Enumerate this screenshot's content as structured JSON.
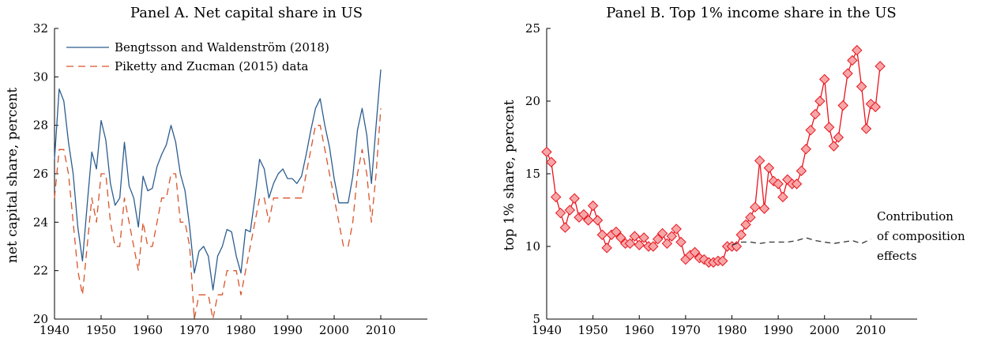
{
  "chart_data": [
    {
      "type": "line",
      "title": "Panel A. Net capital share in US",
      "xlabel": "",
      "ylabel": "net capital share, percent",
      "xlim": [
        1940,
        2020
      ],
      "ylim": [
        20,
        32
      ],
      "xticks": [
        1940,
        1950,
        1960,
        1970,
        1980,
        1990,
        2000,
        2010
      ],
      "yticks": [
        20,
        22,
        24,
        26,
        28,
        30,
        32
      ],
      "grid": false,
      "legend_position": "top-left",
      "series": [
        {
          "name": "Bengtsson and Waldenström (2018)",
          "color": "#2b5d8f",
          "style": "solid",
          "x": [
            1940,
            1941,
            1942,
            1943,
            1944,
            1945,
            1946,
            1947,
            1948,
            1949,
            1950,
            1951,
            1952,
            1953,
            1954,
            1955,
            1956,
            1957,
            1958,
            1959,
            1960,
            1961,
            1962,
            1963,
            1964,
            1965,
            1966,
            1967,
            1968,
            1969,
            1970,
            1971,
            1972,
            1973,
            1974,
            1975,
            1976,
            1977,
            1978,
            1979,
            1980,
            1981,
            1982,
            1983,
            1984,
            1985,
            1986,
            1987,
            1988,
            1989,
            1990,
            1991,
            1992,
            1993,
            1994,
            1995,
            1996,
            1997,
            1998,
            1999,
            2000,
            2001,
            2002,
            2003,
            2004,
            2005,
            2006,
            2007,
            2008,
            2009,
            2010
          ],
          "y": [
            26.6,
            29.5,
            29.0,
            27.3,
            26.0,
            23.8,
            22.4,
            24.7,
            26.9,
            26.2,
            28.2,
            27.4,
            25.6,
            24.7,
            25.0,
            27.3,
            25.5,
            25.0,
            23.8,
            25.9,
            25.3,
            25.4,
            26.3,
            26.8,
            27.2,
            28.0,
            27.3,
            26.0,
            25.3,
            23.8,
            21.9,
            22.8,
            23.0,
            22.6,
            21.2,
            22.6,
            23.0,
            23.7,
            23.6,
            22.6,
            21.9,
            23.7,
            23.6,
            25.0,
            26.6,
            26.2,
            25.0,
            25.6,
            26.0,
            26.2,
            25.8,
            25.8,
            25.6,
            25.9,
            26.8,
            27.8,
            28.7,
            29.1,
            28.0,
            27.1,
            25.8,
            24.8,
            24.8,
            24.8,
            25.9,
            27.8,
            28.7,
            27.6,
            25.6,
            28.0,
            30.3
          ]
        },
        {
          "name": "Piketty and Zucman (2015) data",
          "color": "#d9542a",
          "style": "dashed",
          "x": [
            1940,
            1941,
            1942,
            1943,
            1944,
            1945,
            1946,
            1947,
            1948,
            1949,
            1950,
            1951,
            1952,
            1953,
            1954,
            1955,
            1956,
            1957,
            1958,
            1959,
            1960,
            1961,
            1962,
            1963,
            1964,
            1965,
            1966,
            1967,
            1968,
            1969,
            1970,
            1971,
            1972,
            1973,
            1974,
            1975,
            1976,
            1977,
            1978,
            1979,
            1980,
            1981,
            1982,
            1983,
            1984,
            1985,
            1986,
            1987,
            1988,
            1989,
            1990,
            1991,
            1992,
            1993,
            1994,
            1995,
            1996,
            1997,
            1998,
            1999,
            2000,
            2001,
            2002,
            2003,
            2004,
            2005,
            2006,
            2007,
            2008,
            2009,
            2010
          ],
          "y": [
            25.0,
            27.0,
            27.0,
            26.0,
            24.0,
            22.0,
            21.0,
            23.0,
            25.0,
            24.0,
            26.0,
            26.0,
            24.0,
            23.0,
            23.0,
            25.0,
            24.0,
            23.0,
            22.0,
            24.0,
            23.0,
            23.0,
            24.0,
            25.0,
            25.0,
            26.0,
            26.0,
            24.0,
            24.0,
            23.0,
            20.0,
            21.0,
            21.0,
            21.0,
            20.0,
            21.0,
            21.0,
            22.0,
            22.0,
            22.0,
            21.0,
            22.0,
            23.0,
            24.0,
            25.0,
            25.0,
            24.0,
            25.0,
            25.0,
            25.0,
            25.0,
            25.0,
            25.0,
            25.0,
            26.0,
            27.0,
            28.0,
            28.0,
            27.0,
            26.0,
            25.0,
            24.0,
            23.0,
            23.0,
            24.0,
            26.0,
            27.0,
            26.0,
            24.0,
            26.0,
            28.7
          ]
        }
      ]
    },
    {
      "type": "line",
      "title": "Panel B. Top 1% income share in the US",
      "xlabel": "",
      "ylabel": "top 1% share, percent",
      "xlim": [
        1940,
        2020
      ],
      "ylim": [
        5,
        25
      ],
      "xticks": [
        1940,
        1950,
        1960,
        1970,
        1980,
        1990,
        2000,
        2010
      ],
      "yticks": [
        5,
        10,
        15,
        20,
        25
      ],
      "grid": false,
      "annotation": [
        "Contribution",
        "of composition",
        "effects"
      ],
      "series": [
        {
          "name": "",
          "color": "#e8141c",
          "marker_fill": "#f7a6a8",
          "style": "solid",
          "marker": "diamond",
          "x": [
            1940,
            1941,
            1942,
            1943,
            1944,
            1945,
            1946,
            1947,
            1948,
            1949,
            1950,
            1951,
            1952,
            1953,
            1954,
            1955,
            1956,
            1957,
            1958,
            1959,
            1960,
            1961,
            1962,
            1963,
            1964,
            1965,
            1966,
            1967,
            1968,
            1969,
            1970,
            1971,
            1972,
            1973,
            1974,
            1975,
            1976,
            1977,
            1978,
            1979,
            1980,
            1981,
            1982,
            1983,
            1984,
            1985,
            1986,
            1987,
            1988,
            1989,
            1990,
            1991,
            1992,
            1993,
            1994,
            1995,
            1996,
            1997,
            1998,
            1999,
            2000,
            2001,
            2002,
            2003,
            2004,
            2005,
            2006,
            2007,
            2008,
            2009,
            2010,
            2011,
            2012
          ],
          "y": [
            16.5,
            15.8,
            13.4,
            12.3,
            11.3,
            12.5,
            13.3,
            12.0,
            12.2,
            11.8,
            12.8,
            11.8,
            10.8,
            9.9,
            10.8,
            11.0,
            10.6,
            10.2,
            10.2,
            10.7,
            10.1,
            10.6,
            10.0,
            10.0,
            10.5,
            10.9,
            10.2,
            10.7,
            11.2,
            10.3,
            9.1,
            9.4,
            9.6,
            9.2,
            9.1,
            8.9,
            8.9,
            9.0,
            9.0,
            10.0,
            10.0,
            10.0,
            10.8,
            11.5,
            12.0,
            12.7,
            15.9,
            12.6,
            15.4,
            14.5,
            14.3,
            13.4,
            14.6,
            14.3,
            14.3,
            15.2,
            16.7,
            18.0,
            19.1,
            20.0,
            21.5,
            18.2,
            16.9,
            17.5,
            19.7,
            21.9,
            22.8,
            23.5,
            21.0,
            18.1,
            19.8,
            19.6,
            22.4
          ]
        },
        {
          "name": "",
          "color": "#333333",
          "style": "dashed",
          "x": [
            1980,
            1982,
            1984,
            1986,
            1988,
            1990,
            1992,
            1994,
            1996,
            1998,
            2000,
            2002,
            2004,
            2006,
            2008,
            2010
          ],
          "y": [
            10.1,
            10.3,
            10.3,
            10.2,
            10.3,
            10.3,
            10.3,
            10.4,
            10.6,
            10.4,
            10.3,
            10.2,
            10.3,
            10.4,
            10.2,
            10.5
          ]
        }
      ]
    }
  ]
}
